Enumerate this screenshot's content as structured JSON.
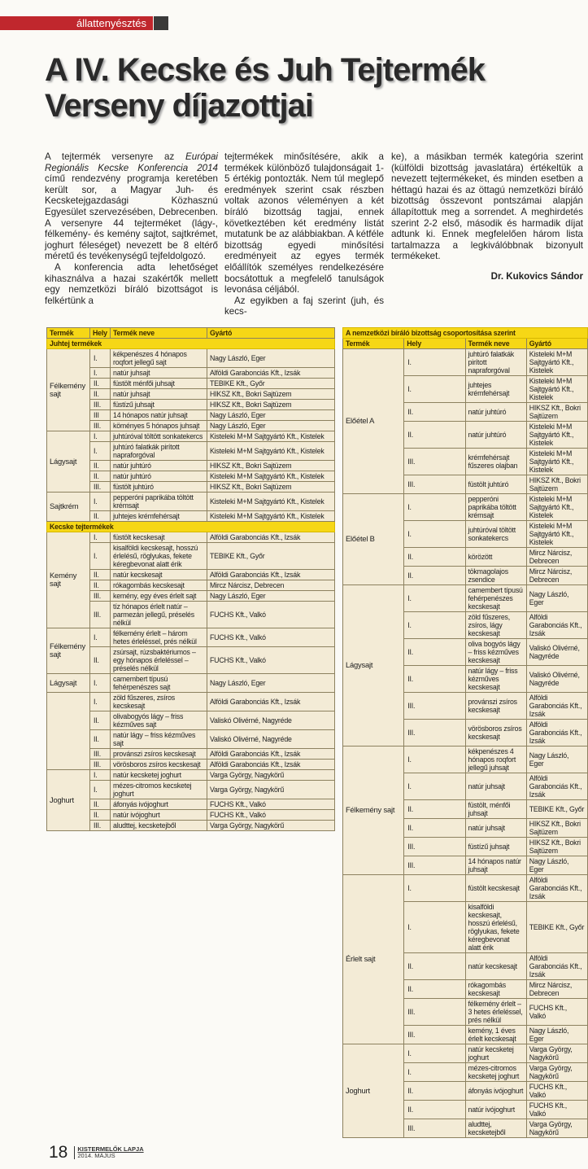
{
  "section_tag": "állattenyésztés",
  "title": "A IV. Kecske és Juh Tejtermék Verseny díjazottjai",
  "body": {
    "col1": [
      "A tejtermék versenyre az |Európai Regionális Kecske Konferencia 2014| című rendezvény programja keretében került sor, a Magyar Juh- és Kecsketejgazdasági Közhasznú Egyesület szervezésében, Debrecenben. A versenyre 44 tejterméket (lágy-, félkemény- és kemény sajtot, sajtkrémet, joghurt féleséget) nevezett be 8 eltérő méretű és tevékenységű tejfeldolgozó.",
      "A konferencia adta lehetőséget kihasználva a hazai szakértők mellett egy nemzetközi bíráló bizottságot is felkértünk a"
    ],
    "col2": [
      "tejtermékek minősítésére, akik a termékek különböző tulajdonságait 1-5 értékig pontozták. Nem túl meglepő eredmények szerint csak részben voltak azonos véleményen a két bíráló bizottság tagjai, ennek következtében két eredmény listát mutatunk be az alábbiakban. A kétféle bizottság egyedi minősítési eredményeit az egyes termék előállítók személyes rendelkezésére bocsátottuk a megfelelő tanulságok levonása céljából.",
      "Az egyikben a faj szerint (juh, és kecs-"
    ],
    "col3": [
      "ke), a másikban termék kategória szerint (külföldi bizottság javaslatára) értékeltük a nevezett tejtermékeket, és minden esetben a héttagú hazai és az öttagú nemzetközi bíráló bizottság összevont pontszámai alapján állapítottuk meg a sorrendet. A meghirdetés szerint 2-2 első, második és harmadik díjat adtunk ki. Ennek megfelelően három lista tartalmazza a legkiválóbbnak bizonyult termékeket."
    ],
    "author": "Dr. Kukovics Sándor"
  },
  "left_table": {
    "headers": [
      "Termék",
      "Hely",
      "Termék neve",
      "Gyártó"
    ],
    "sections": [
      {
        "title": "Juhtej termékek",
        "groups": [
          {
            "category": "Félkemény sajt",
            "rows": [
              [
                "I.",
                "kékpenészes 4 hónapos roqfort jellegű sajt",
                "Nagy László, Eger"
              ],
              [
                "I.",
                "natúr juhsajt",
                "Alföldi Garabonciás Kft., Izsák"
              ],
              [
                "II.",
                "füstölt ménfői juhsajt",
                "TEBIKE Kft., Győr"
              ],
              [
                "II.",
                "natúr juhsajt",
                "HIKSZ Kft., Bokri Sajtüzem"
              ],
              [
                "III.",
                "füstízű juhsajt",
                "HIKSZ Kft., Bokri Sajtüzem"
              ],
              [
                "III",
                "14 hónapos natúr juhsajt",
                "Nagy László, Eger"
              ],
              [
                "III.",
                "köményes 5 hónapos juhsajt",
                "Nagy László, Eger"
              ]
            ]
          },
          {
            "category": "Lágysajt",
            "rows": [
              [
                "I.",
                "juhtúróval töltött sonkatekercs",
                "Kisteleki M+M Sajtgyártó Kft., Kistelek"
              ],
              [
                "I.",
                "juhtúró falatkák pirított napraforgóval",
                "Kisteleki M+M Sajtgyártó Kft., Kistelek"
              ],
              [
                "II.",
                "natúr juhtúró",
                "HIKSZ Kft., Bokri Sajtüzem"
              ],
              [
                "II.",
                "natúr juhtúró",
                "Kisteleki M+M Sajtgyártó Kft., Kistelek"
              ],
              [
                "III.",
                "füstölt juhtúró",
                "HIKSZ Kft., Bokri Sajtüzem"
              ]
            ]
          },
          {
            "category": "Sajtkrém",
            "rows": [
              [
                "I.",
                "pepperóni paprikába töltött krémsajt",
                "Kisteleki M+M Sajtgyártó Kft., Kistelek"
              ],
              [
                "II.",
                "juhtejes krémfehérsajt",
                "Kisteleki M+M Sajtgyártó Kft., Kistelek"
              ]
            ]
          }
        ]
      },
      {
        "title": "Kecske tejtermékek",
        "groups": [
          {
            "category": "Kemény sajt",
            "rows": [
              [
                "I.",
                "füstölt kecskesajt",
                "Alföldi Garabonciás Kft., Izsák"
              ],
              [
                "I.",
                "kisalföldi kecskesajt, hosszú érlelésű, röglyukas, fekete kéregbevonat alatt érik",
                "TEBIKE Kft., Győr"
              ],
              [
                "II.",
                "natúr kecskesajt",
                "Alföldi Garabonciás Kft., Izsák"
              ],
              [
                "II.",
                "rókagombás kecskesajt",
                "Mircz Nárcisz, Debrecen"
              ],
              [
                "III.",
                "kemény, egy éves érlelt sajt",
                "Nagy László, Eger"
              ],
              [
                "III.",
                "tíz hónapos érlelt natúr – parmezán jellegű, préselés nélkül",
                "FUCHS Kft., Valkó"
              ]
            ]
          },
          {
            "category": "Félkemény sajt",
            "rows": [
              [
                "I.",
                "félkemény érlelt – három hetes érleléssel, prés nélkül",
                "FUCHS Kft., Valkó"
              ],
              [
                "II.",
                "zsúrsajt, rúzsbaktériumos – egy hónapos érleléssel – préselés nélkül",
                "FUCHS Kft., Valkó"
              ]
            ]
          },
          {
            "category": "Lágysajt",
            "rows": [
              [
                "I.",
                "camembert típusú fehérpenészes sajt",
                "Nagy László, Eger"
              ]
            ]
          },
          {
            "category": "",
            "rows": [
              [
                "I.",
                "zöld fűszeres, zsíros kecskesajt",
                "Alföldi Garabonciás Kft., Izsák"
              ],
              [
                "II.",
                "olivabogyós lágy – friss kézműves sajt",
                "Valiskó Olivérné, Nagyréde"
              ],
              [
                "II.",
                "natúr lágy – friss kézműves sajt",
                "Valiskó Olivérné, Nagyréde"
              ],
              [
                "III.",
                "provánszi zsíros kecskesajt",
                "Alföldi Garabonciás Kft., Izsák"
              ],
              [
                "III.",
                "vörösboros zsíros kecskesajt",
                "Alföldi Garabonciás Kft., Izsák"
              ]
            ]
          },
          {
            "category": "Joghurt",
            "rows": [
              [
                "I.",
                "natúr kecsketej joghurt",
                "Varga György, Nagykörű"
              ],
              [
                "I.",
                "mézes-citromos kecsketej joghurt",
                "Varga György, Nagykörű"
              ],
              [
                "II.",
                "áfonyás ivójoghurt",
                "FUCHS Kft., Valkó"
              ],
              [
                "II.",
                "natúr ivójoghurt",
                "FUCHS Kft., Valkó"
              ],
              [
                "III.",
                "aludttej, kecsketejből",
                "Varga György, Nagykörű"
              ]
            ]
          }
        ]
      }
    ]
  },
  "right_table": {
    "caption": "A nemzetközi bíráló bizottság csoportosítása szerint",
    "headers": [
      "Termék",
      "Hely",
      "Termék neve",
      "Gyártó"
    ],
    "groups": [
      {
        "category": "Előétel A",
        "rows": [
          [
            "I.",
            "juhtúró falatkák pirított napraforgóval",
            "Kisteleki M+M Sajtgyártó Kft., Kistelek"
          ],
          [
            "I.",
            "juhtejes krémfehérsajt",
            "Kisteleki M+M Sajtgyártó Kft., Kistelek"
          ],
          [
            "II.",
            "natúr juhtúró",
            "HIKSZ Kft., Bokri Sajtüzem"
          ],
          [
            "II.",
            "natúr juhtúró",
            "Kisteleki M+M Sajtgyártó Kft., Kistelek"
          ],
          [
            "III.",
            "krémfehérsajt fűszeres olajban",
            "Kisteleki M+M Sajtgyártó Kft., Kistelek"
          ],
          [
            "III.",
            "füstölt juhtúró",
            "HIKSZ Kft., Bokri Sajtüzem"
          ]
        ]
      },
      {
        "category": "Előétel B",
        "rows": [
          [
            "I.",
            "pepperóni paprikába töltött krémsajt",
            "Kisteleki M+M Sajtgyártó Kft., Kistelek"
          ],
          [
            "I.",
            "juhtúróval töltött sonkatekercs",
            "Kisteleki M+M Sajtgyártó Kft., Kistelek"
          ],
          [
            "II.",
            "körözött",
            "Mircz Nárcisz, Debrecen"
          ],
          [
            "II.",
            "tökmagolajos zsendice",
            "Mircz Nárcisz, Debrecen"
          ]
        ]
      },
      {
        "category": "Lágysajt",
        "rows": [
          [
            "I.",
            "camembert típusú fehérpenészes kecskesajt",
            "Nagy László, Eger"
          ],
          [
            "I.",
            "zöld fűszeres, zsíros, lágy kecskesajt",
            "Alföldi Garabonciás Kft., Izsák"
          ],
          [
            "II.",
            "oliva bogyós lágy – friss kézműves kecskesajt",
            "Valiskó Olivérné, Nagyréde"
          ],
          [
            "II.",
            "natúr lágy – friss kézműves kecskesajt",
            "Valiskó Olivérné, Nagyréde"
          ],
          [
            "III.",
            "provánszi zsíros kecskesajt",
            "Alföldi Garabonciás Kft., Izsák"
          ],
          [
            "III.",
            "vörösboros zsíros kecskesajt",
            "Alföldi Garabonciás Kft., Izsák"
          ]
        ]
      },
      {
        "category": "Félkemény sajt",
        "rows": [
          [
            "I.",
            "kékpenészes 4 hónapos roqfort jellegű juhsajt",
            "Nagy László, Eger"
          ],
          [
            "I.",
            "natúr juhsajt",
            "Alföldi Garabonciás Kft., Izsák"
          ],
          [
            "II.",
            "füstölt, ménfői juhsajt",
            "TEBIKE Kft., Győr"
          ],
          [
            "II.",
            "natúr juhsajt",
            "HIKSZ Kft., Bokri Sajtüzem"
          ],
          [
            "III.",
            "füstízű juhsajt",
            "HIKSZ Kft., Bokri Sajtüzem"
          ],
          [
            "III.",
            "14 hónapos natúr juhsajt",
            "Nagy László, Eger"
          ]
        ]
      },
      {
        "category": "Érlelt sajt",
        "rows": [
          [
            "I.",
            "füstölt kecskesajt",
            "Alföldi Garabonciás Kft., Izsák"
          ],
          [
            "I.",
            "kisalföldi kecskesajt, hosszú érlelésű, röglyukas, fekete kéregbevonat alatt érik",
            "TEBIKE Kft., Győr"
          ],
          [
            "II.",
            "natúr kecskesajt",
            "Alföldi Garabonciás Kft., Izsák"
          ],
          [
            "II.",
            "rókagombás kecskesajt",
            "Mircz Nárcisz, Debrecen"
          ],
          [
            "III.",
            "félkemény érlelt – 3 hetes érleléssel, prés nélkül",
            "FUCHS Kft., Valkó"
          ],
          [
            "III.",
            "kemény, 1 éves érlelt kecskesajt",
            "Nagy László, Eger"
          ]
        ]
      },
      {
        "category": "Joghurt",
        "rows": [
          [
            "I.",
            "natúr kecsketej joghurt",
            "Varga György, Nagykörű"
          ],
          [
            "I.",
            "mézes-citromos kecsketej joghurt",
            "Varga György, Nagykörű"
          ],
          [
            "II.",
            "áfonyás ivójoghurt",
            "FUCHS Kft., Valkó"
          ],
          [
            "II.",
            "natúr ivójoghurt",
            "FUCHS Kft., Valkó"
          ],
          [
            "III.",
            "aludttej, kecsketejből",
            "Varga György, Nagykörű"
          ]
        ]
      }
    ]
  },
  "footer": {
    "page_number": "18",
    "magazine": "KISTERMELŐK LAPJA",
    "issue": "2014. MÁJUS"
  },
  "colors": {
    "section_red": "#c0272d",
    "table_yellow": "#f6d716",
    "table_bg": "#f3ebd6"
  }
}
